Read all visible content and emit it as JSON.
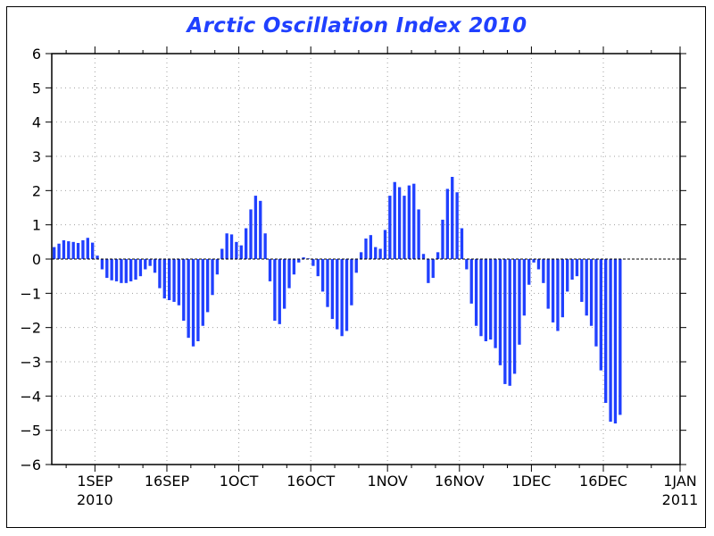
{
  "chart_data": {
    "type": "bar",
    "title": "Arctic Oscillation Index 2010",
    "xlabel": "",
    "ylabel": "",
    "ylim": [
      -6,
      6
    ],
    "yticks": [
      -6,
      -5,
      -4,
      -3,
      -2,
      -1,
      0,
      1,
      2,
      3,
      4,
      5,
      6
    ],
    "x_start": "2010-08-23",
    "x_end": "2011-01-01",
    "xtick_labels": [
      {
        "label": "1SEP",
        "sub": "2010"
      },
      {
        "label": "16SEP",
        "sub": ""
      },
      {
        "label": "1OCT",
        "sub": ""
      },
      {
        "label": "16OCT",
        "sub": ""
      },
      {
        "label": "1NOV",
        "sub": ""
      },
      {
        "label": "16NOV",
        "sub": ""
      },
      {
        "label": "1DEC",
        "sub": ""
      },
      {
        "label": "16DEC",
        "sub": ""
      },
      {
        "label": "1JAN",
        "sub": "2011"
      }
    ],
    "xtick_dates": [
      "2010-09-01",
      "2010-09-16",
      "2010-10-01",
      "2010-10-16",
      "2010-11-01",
      "2010-11-16",
      "2010-12-01",
      "2010-12-16",
      "2011-01-01"
    ],
    "grid": true,
    "bar_color": "#2040ff",
    "series": [
      {
        "x_start": "2010-08-23",
        "values": [
          0.35,
          0.45,
          0.55,
          0.52,
          0.5,
          0.47,
          0.55,
          0.62,
          0.48,
          0.1,
          -0.3,
          -0.55,
          -0.62,
          -0.65,
          -0.7,
          -0.7,
          -0.65,
          -0.6,
          -0.5,
          -0.3,
          -0.2,
          -0.4,
          -0.85,
          -1.15,
          -1.2,
          -1.25,
          -1.35,
          -1.8,
          -2.3,
          -2.55,
          -2.4,
          -1.95,
          -1.55,
          -1.05,
          -0.45,
          0.3,
          0.75,
          0.72,
          0.5,
          0.4,
          0.9,
          1.45,
          1.85,
          1.7,
          0.75,
          -0.65,
          -1.8,
          -1.9,
          -1.45,
          -0.85,
          -0.45,
          -0.1,
          0.05,
          0.02,
          -0.2,
          -0.5,
          -0.95,
          -1.4,
          -1.75,
          -2.05,
          -2.25,
          -2.1,
          -1.35,
          -0.4,
          0.2,
          0.6,
          0.7,
          0.35,
          0.3,
          0.85,
          1.85,
          2.25,
          2.1,
          1.85,
          2.15,
          2.2,
          1.45,
          0.15,
          -0.7,
          -0.55,
          0.2,
          1.15,
          2.05,
          2.4,
          1.95,
          0.9,
          -0.3,
          -1.3,
          -1.95,
          -2.25,
          -2.4,
          -2.35,
          -2.6,
          -3.1,
          -3.65,
          -3.7,
          -3.35,
          -2.5,
          -1.65,
          -0.75,
          -0.1,
          -0.3,
          -0.7,
          -1.45,
          -1.85,
          -2.1,
          -1.7,
          -0.95,
          -0.6,
          -0.5,
          -1.25,
          -1.65,
          -1.95,
          -2.55,
          -3.25,
          -4.2,
          -4.75,
          -4.8,
          -4.55
        ]
      }
    ]
  }
}
